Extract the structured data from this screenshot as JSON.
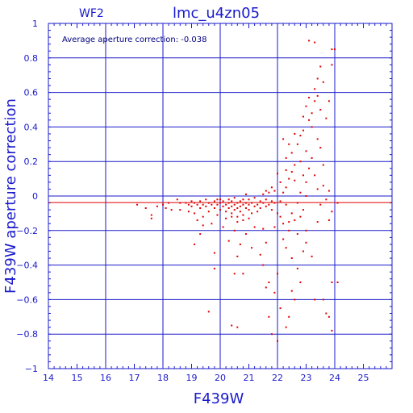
{
  "chart_data": {
    "type": "scatter",
    "panel_label": "WF2",
    "title": "lmc_u4zn05",
    "annotation": "Average aperture correction:  -0.038",
    "xlabel": "F439W",
    "ylabel": "F439W  aperture  correction",
    "xlim": [
      14,
      26
    ],
    "ylim": [
      -1,
      1
    ],
    "grid": true,
    "reference_line_y": -0.038,
    "x_ticks": [
      14,
      15,
      16,
      17,
      18,
      19,
      20,
      21,
      22,
      23,
      24,
      25
    ],
    "x_tick_labels": [
      "14",
      "15",
      "16",
      "17",
      "18",
      "19",
      "20",
      "21",
      "22",
      "23",
      "24",
      "25"
    ],
    "y_ticks": [
      -1,
      -0.8,
      -0.6,
      -0.4,
      -0.2,
      0,
      0.2,
      0.4,
      0.6,
      0.8,
      1
    ],
    "y_tick_labels": [
      "−1",
      "−0.8",
      "−0.6",
      "−0.4",
      "−0.2",
      "0",
      "0.2",
      "0.4",
      "0.6",
      "0.8",
      "1"
    ],
    "colors": {
      "axes": "#1a1acc",
      "points": "#e00000",
      "reference_line": "#e00000"
    },
    "points": [
      [
        17.1,
        -0.05
      ],
      [
        17.4,
        -0.07
      ],
      [
        17.6,
        -0.11
      ],
      [
        17.6,
        -0.13
      ],
      [
        17.8,
        -0.06
      ],
      [
        18.0,
        -0.05
      ],
      [
        18.1,
        -0.07
      ],
      [
        18.2,
        -0.04
      ],
      [
        18.3,
        -0.08
      ],
      [
        18.5,
        -0.02
      ],
      [
        18.6,
        -0.04
      ],
      [
        18.6,
        -0.08
      ],
      [
        18.8,
        -0.04
      ],
      [
        18.9,
        -0.05
      ],
      [
        18.9,
        -0.09
      ],
      [
        19.0,
        -0.03
      ],
      [
        19.0,
        -0.06
      ],
      [
        19.1,
        -0.04
      ],
      [
        19.1,
        -0.1
      ],
      [
        19.2,
        -0.05
      ],
      [
        19.2,
        -0.14
      ],
      [
        19.3,
        -0.03
      ],
      [
        19.3,
        -0.07
      ],
      [
        19.4,
        -0.05
      ],
      [
        19.4,
        -0.12
      ],
      [
        19.5,
        -0.02
      ],
      [
        19.5,
        -0.06
      ],
      [
        19.6,
        -0.04
      ],
      [
        19.6,
        -0.09
      ],
      [
        19.7,
        -0.05
      ],
      [
        19.7,
        -0.16
      ],
      [
        19.8,
        -0.03
      ],
      [
        19.8,
        -0.07
      ],
      [
        19.9,
        -0.05
      ],
      [
        19.9,
        -0.11
      ],
      [
        19.9,
        -0.02
      ],
      [
        20.0,
        -0.04
      ],
      [
        20.0,
        -0.08
      ],
      [
        20.1,
        -0.06
      ],
      [
        20.1,
        -0.03
      ],
      [
        20.2,
        -0.05
      ],
      [
        20.2,
        -0.09
      ],
      [
        20.2,
        -0.13
      ],
      [
        20.3,
        -0.04
      ],
      [
        20.3,
        -0.07
      ],
      [
        20.3,
        -0.02
      ],
      [
        20.4,
        -0.06
      ],
      [
        20.4,
        -0.1
      ],
      [
        20.4,
        -0.03
      ],
      [
        20.5,
        -0.05
      ],
      [
        20.5,
        -0.08
      ],
      [
        20.5,
        -0.01
      ],
      [
        20.6,
        -0.04
      ],
      [
        20.6,
        -0.07
      ],
      [
        20.6,
        -0.12
      ],
      [
        20.7,
        -0.03
      ],
      [
        20.7,
        -0.06
      ],
      [
        20.7,
        -0.09
      ],
      [
        20.8,
        -0.05
      ],
      [
        20.8,
        -0.02
      ],
      [
        20.8,
        -0.11
      ],
      [
        20.9,
        -0.04
      ],
      [
        20.9,
        -0.07
      ],
      [
        20.9,
        0.01
      ],
      [
        21.0,
        -0.05
      ],
      [
        21.0,
        -0.08
      ],
      [
        21.0,
        -0.02
      ],
      [
        21.1,
        -0.04
      ],
      [
        21.1,
        -0.1
      ],
      [
        21.2,
        -0.06
      ],
      [
        21.2,
        -0.01
      ],
      [
        21.3,
        -0.05
      ],
      [
        21.3,
        -0.09
      ],
      [
        21.4,
        -0.03
      ],
      [
        21.4,
        -0.07
      ],
      [
        21.5,
        -0.04
      ],
      [
        21.5,
        0.01
      ],
      [
        21.6,
        -0.06
      ],
      [
        21.6,
        -0.02
      ],
      [
        21.7,
        -0.05
      ],
      [
        21.7,
        0.02
      ],
      [
        21.8,
        -0.03
      ],
      [
        21.8,
        -0.08
      ],
      [
        21.9,
        -0.04
      ],
      [
        21.9,
        0.03
      ],
      [
        20.0,
        -0.02
      ],
      [
        20.4,
        -0.12
      ],
      [
        20.6,
        -0.15
      ],
      [
        20.8,
        -0.14
      ],
      [
        21.0,
        -0.13
      ],
      [
        19.4,
        -0.17
      ],
      [
        20.1,
        -0.18
      ],
      [
        20.5,
        -0.2
      ],
      [
        20.9,
        -0.22
      ],
      [
        21.2,
        -0.18
      ],
      [
        21.5,
        -0.19
      ],
      [
        20.3,
        -0.26
      ],
      [
        20.7,
        -0.28
      ],
      [
        21.1,
        -0.3
      ],
      [
        21.6,
        -0.27
      ],
      [
        19.3,
        -0.22
      ],
      [
        19.1,
        -0.28
      ],
      [
        19.8,
        -0.33
      ],
      [
        20.6,
        -0.35
      ],
      [
        21.4,
        -0.34
      ],
      [
        20.5,
        -0.45
      ],
      [
        20.8,
        -0.45
      ],
      [
        21.5,
        -0.4
      ],
      [
        19.8,
        -0.42
      ],
      [
        19.6,
        -0.67
      ],
      [
        20.4,
        -0.75
      ],
      [
        20.6,
        -0.76
      ],
      [
        21.7,
        -0.7
      ],
      [
        21.8,
        -0.8
      ],
      [
        22.0,
        -0.84
      ],
      [
        21.7,
        -0.5
      ],
      [
        21.6,
        -0.53
      ],
      [
        22.0,
        -0.45
      ],
      [
        21.9,
        -0.56
      ],
      [
        22.3,
        -0.3
      ],
      [
        22.5,
        -0.36
      ],
      [
        22.6,
        -0.6
      ],
      [
        22.8,
        -0.5
      ],
      [
        22.5,
        -0.55
      ],
      [
        23.0,
        -0.2
      ],
      [
        22.2,
        -0.25
      ],
      [
        22.4,
        -0.15
      ],
      [
        22.7,
        -0.22
      ],
      [
        23.2,
        -0.35
      ],
      [
        23.3,
        -0.6
      ],
      [
        23.6,
        -0.6
      ],
      [
        23.7,
        -0.68
      ],
      [
        23.8,
        -0.7
      ],
      [
        23.9,
        -0.78
      ],
      [
        24.1,
        -0.5
      ],
      [
        23.9,
        -0.5
      ],
      [
        24.1,
        -0.04
      ],
      [
        23.8,
        -0.14
      ],
      [
        23.4,
        -0.15
      ],
      [
        23.0,
        -0.27
      ],
      [
        22.9,
        -0.32
      ],
      [
        22.7,
        -0.42
      ],
      [
        22.1,
        -0.65
      ],
      [
        22.4,
        -0.7
      ],
      [
        22.3,
        -0.76
      ],
      [
        21.9,
        -0.18
      ],
      [
        22.0,
        -0.1
      ],
      [
        22.1,
        -0.03
      ],
      [
        22.2,
        0.02
      ],
      [
        22.3,
        0.05
      ],
      [
        22.4,
        0.1
      ],
      [
        22.5,
        0.14
      ],
      [
        22.6,
        0.18
      ],
      [
        22.3,
        0.22
      ],
      [
        22.5,
        0.25
      ],
      [
        22.7,
        0.3
      ],
      [
        22.8,
        0.35
      ],
      [
        22.9,
        0.38
      ],
      [
        22.2,
        0.33
      ],
      [
        22.4,
        0.3
      ],
      [
        22.6,
        0.36
      ],
      [
        22.8,
        0.2
      ],
      [
        22.9,
        0.12
      ],
      [
        23.0,
        0.08
      ],
      [
        23.1,
        0.16
      ],
      [
        23.2,
        0.22
      ],
      [
        23.0,
        0.26
      ],
      [
        23.1,
        0.44
      ],
      [
        23.2,
        0.48
      ],
      [
        23.3,
        0.55
      ],
      [
        23.3,
        0.62
      ],
      [
        23.4,
        0.58
      ],
      [
        23.4,
        0.68
      ],
      [
        23.5,
        0.5
      ],
      [
        23.2,
        0.4
      ],
      [
        23.0,
        0.52
      ],
      [
        22.9,
        0.46
      ],
      [
        23.1,
        0.57
      ],
      [
        23.5,
        0.75
      ],
      [
        23.6,
        0.66
      ],
      [
        23.7,
        0.45
      ],
      [
        23.8,
        0.55
      ],
      [
        23.9,
        0.76
      ],
      [
        23.1,
        0.9
      ],
      [
        23.3,
        0.89
      ],
      [
        23.9,
        0.85
      ],
      [
        24.0,
        0.85
      ],
      [
        23.4,
        0.33
      ],
      [
        23.5,
        0.28
      ],
      [
        23.6,
        0.18
      ],
      [
        23.3,
        0.12
      ],
      [
        23.4,
        0.04
      ],
      [
        23.6,
        0.06
      ],
      [
        23.7,
        -0.02
      ],
      [
        23.8,
        0.03
      ],
      [
        23.9,
        -0.09
      ],
      [
        23.5,
        -0.05
      ],
      [
        21.8,
        0.05
      ],
      [
        22.1,
        0.08
      ],
      [
        21.6,
        0.03
      ],
      [
        22.0,
        0.13
      ],
      [
        22.3,
        0.15
      ],
      [
        22.6,
        0.09
      ],
      [
        22.8,
        0.02
      ],
      [
        22.7,
        -0.04
      ],
      [
        22.9,
        -0.08
      ],
      [
        23.0,
        0.0
      ],
      [
        22.5,
        -0.1
      ],
      [
        22.1,
        -0.12
      ],
      [
        22.3,
        -0.05
      ],
      [
        22.2,
        -0.16
      ],
      [
        22.6,
        -0.14
      ],
      [
        22.4,
        -0.2
      ],
      [
        22.8,
        -0.12
      ]
    ]
  }
}
